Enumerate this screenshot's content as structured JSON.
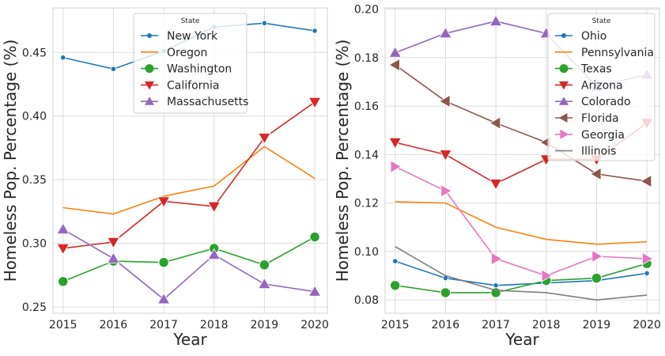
{
  "chart_data": [
    {
      "type": "line",
      "xlabel": "Year",
      "ylabel": "Homeless Pop. Percentage (%)",
      "x": [
        2015,
        2016,
        2017,
        2018,
        2019,
        2020
      ],
      "xlim": [
        2014.8,
        2020.25
      ],
      "ylim": [
        0.245,
        0.485
      ],
      "yticks": [
        "0.25",
        "0.30",
        "0.35",
        "0.40",
        "0.45"
      ],
      "ytick_values": [
        0.25,
        0.3,
        0.35,
        0.4,
        0.45
      ],
      "grid": true,
      "legend": {
        "title": "State",
        "placement": "top-center"
      },
      "series": [
        {
          "name": "New York",
          "color": "#1f77b4",
          "marker": "circle-small",
          "values": [
            0.446,
            0.437,
            0.451,
            0.47,
            0.473,
            0.467
          ]
        },
        {
          "name": "Oregon",
          "color": "#ff7f0e",
          "marker": "none",
          "values": [
            0.328,
            0.323,
            0.337,
            0.345,
            0.376,
            0.351
          ]
        },
        {
          "name": "Washington",
          "color": "#2ca02c",
          "marker": "circle",
          "values": [
            0.27,
            0.286,
            0.285,
            0.296,
            0.283,
            0.305
          ]
        },
        {
          "name": "California",
          "color": "#d62728",
          "marker": "triangle-down",
          "values": [
            0.296,
            0.301,
            0.333,
            0.329,
            0.383,
            0.411
          ]
        },
        {
          "name": "Massachusetts",
          "color": "#9467bd",
          "marker": "triangle-up",
          "values": [
            0.311,
            0.288,
            0.256,
            0.291,
            0.268,
            0.262
          ]
        }
      ]
    },
    {
      "type": "line",
      "xlabel": "Year",
      "ylabel": "Homeless Pop. Percentage (%)",
      "x": [
        2015,
        2016,
        2017,
        2018,
        2019,
        2020
      ],
      "xlim": [
        2014.8,
        2020.25
      ],
      "ylim": [
        0.0745,
        0.2005
      ],
      "yticks": [
        "0.08",
        "0.10",
        "0.12",
        "0.14",
        "0.16",
        "0.18",
        "0.20"
      ],
      "ytick_values": [
        0.08,
        0.1,
        0.12,
        0.14,
        0.16,
        0.18,
        0.2
      ],
      "grid": true,
      "legend": {
        "title": "State",
        "placement": "top-right"
      },
      "series": [
        {
          "name": "Ohio",
          "color": "#1f77b4",
          "marker": "circle-small",
          "values": [
            0.096,
            0.089,
            0.086,
            0.087,
            0.088,
            0.091
          ]
        },
        {
          "name": "Pennsylvania",
          "color": "#ff7f0e",
          "marker": "none",
          "values": [
            0.1205,
            0.12,
            0.11,
            0.105,
            0.103,
            0.104
          ]
        },
        {
          "name": "Texas",
          "color": "#2ca02c",
          "marker": "circle",
          "values": [
            0.086,
            0.083,
            0.083,
            0.088,
            0.089,
            0.095
          ]
        },
        {
          "name": "Arizona",
          "color": "#d62728",
          "marker": "triangle-down",
          "values": [
            0.145,
            0.14,
            0.128,
            0.138,
            0.138,
            0.153
          ]
        },
        {
          "name": "Colorado",
          "color": "#9467bd",
          "marker": "triangle-up",
          "values": [
            0.182,
            0.19,
            0.195,
            0.19,
            0.168,
            0.173
          ]
        },
        {
          "name": "Florida",
          "color": "#8c564b",
          "marker": "triangle-left",
          "values": [
            0.177,
            0.162,
            0.153,
            0.145,
            0.132,
            0.129
          ]
        },
        {
          "name": "Georgia",
          "color": "#e377c2",
          "marker": "triangle-right",
          "values": [
            0.135,
            0.125,
            0.097,
            0.09,
            0.098,
            0.097
          ]
        },
        {
          "name": "Illinois",
          "color": "#7f7f7f",
          "marker": "none",
          "values": [
            0.102,
            0.09,
            0.084,
            0.083,
            0.08,
            0.082
          ]
        }
      ]
    }
  ]
}
